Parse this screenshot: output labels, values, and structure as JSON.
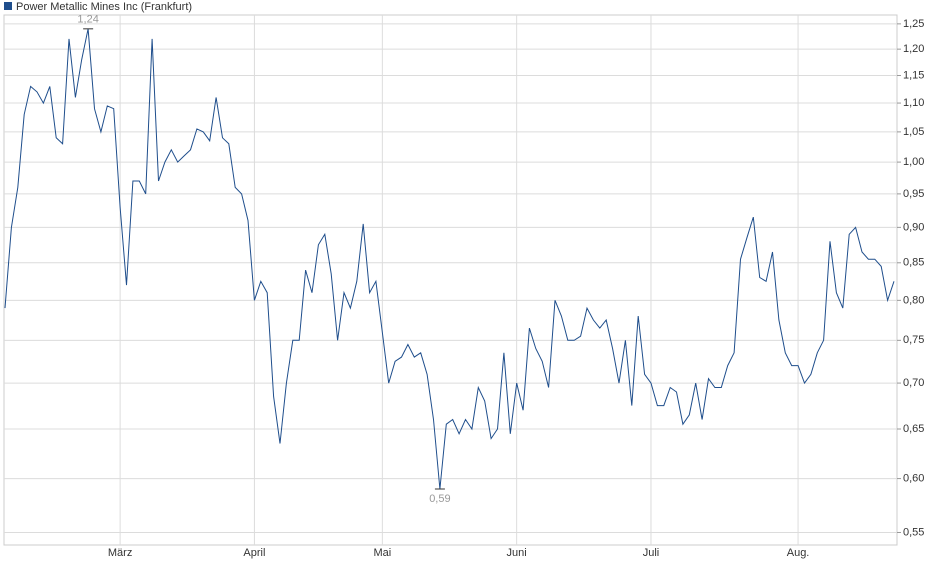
{
  "chart_data": {
    "type": "line",
    "legend_position": "top-left",
    "log_scale": true,
    "grid": true,
    "categories": [
      null,
      null,
      null,
      null,
      null,
      null,
      null,
      null,
      null,
      null,
      null,
      null,
      null,
      null,
      null,
      null,
      null,
      null,
      "März",
      null,
      null,
      null,
      null,
      null,
      null,
      null,
      null,
      null,
      null,
      null,
      null,
      null,
      null,
      null,
      null,
      null,
      null,
      null,
      null,
      "April",
      null,
      null,
      null,
      null,
      null,
      null,
      null,
      null,
      null,
      null,
      null,
      null,
      null,
      null,
      null,
      null,
      null,
      null,
      null,
      "Mai",
      null,
      null,
      null,
      null,
      null,
      null,
      null,
      null,
      null,
      null,
      null,
      null,
      null,
      null,
      null,
      null,
      null,
      null,
      null,
      null,
      "Juni",
      null,
      null,
      null,
      null,
      null,
      null,
      null,
      null,
      null,
      null,
      null,
      null,
      null,
      null,
      null,
      null,
      null,
      null,
      null,
      null,
      "Juli",
      null,
      null,
      null,
      null,
      null,
      null,
      null,
      null,
      null,
      null,
      null,
      null,
      null,
      null,
      null,
      null,
      null,
      null,
      null,
      null,
      null,
      null,
      "Aug.",
      null,
      null,
      null,
      null,
      null,
      null,
      null,
      null,
      null,
      null,
      null,
      null,
      null,
      null,
      null
    ],
    "series": [
      {
        "name": "Power Metallic Mines Inc (Frankfurt)",
        "color": "#1f4e8c",
        "values": [
          0.79,
          0.9,
          0.96,
          1.08,
          1.13,
          1.12,
          1.1,
          1.13,
          1.04,
          1.03,
          1.22,
          1.11,
          1.18,
          1.24,
          1.09,
          1.05,
          1.095,
          1.09,
          0.93,
          0.82,
          0.97,
          0.97,
          0.95,
          1.22,
          0.97,
          1.0,
          1.02,
          1.0,
          1.01,
          1.02,
          1.055,
          1.05,
          1.035,
          1.11,
          1.04,
          1.03,
          0.96,
          0.95,
          0.91,
          0.8,
          0.825,
          0.81,
          0.685,
          0.635,
          0.7,
          0.75,
          0.75,
          0.84,
          0.81,
          0.875,
          0.89,
          0.835,
          0.75,
          0.81,
          0.79,
          0.825,
          0.905,
          0.81,
          0.825,
          0.76,
          0.7,
          0.725,
          0.73,
          0.745,
          0.73,
          0.735,
          0.71,
          0.66,
          0.59,
          0.655,
          0.66,
          0.645,
          0.66,
          0.65,
          0.695,
          0.68,
          0.64,
          0.65,
          0.735,
          0.645,
          0.7,
          0.67,
          0.765,
          0.74,
          0.725,
          0.695,
          0.8,
          0.78,
          0.75,
          0.75,
          0.755,
          0.79,
          0.775,
          0.765,
          0.775,
          0.74,
          0.7,
          0.75,
          0.675,
          0.78,
          0.71,
          0.7,
          0.675,
          0.675,
          0.695,
          0.69,
          0.655,
          0.665,
          0.7,
          0.66,
          0.705,
          0.695,
          0.695,
          0.72,
          0.735,
          0.855,
          0.885,
          0.915,
          0.83,
          0.825,
          0.865,
          0.775,
          0.735,
          0.72,
          0.72,
          0.7,
          0.71,
          0.735,
          0.75,
          0.88,
          0.81,
          0.79,
          0.89,
          0.9,
          0.865,
          0.855,
          0.855,
          0.845,
          0.8,
          0.825
        ],
        "value_labels": [
          null,
          null,
          null,
          null,
          null,
          null,
          null,
          null,
          null,
          null,
          null,
          null,
          null,
          "1,24",
          null,
          null,
          null,
          null,
          null,
          null,
          null,
          null,
          null,
          null,
          null,
          null,
          null,
          null,
          null,
          null,
          null,
          null,
          null,
          null,
          null,
          null,
          null,
          null,
          null,
          null,
          null,
          null,
          null,
          null,
          null,
          null,
          null,
          null,
          null,
          null,
          null,
          null,
          null,
          null,
          null,
          null,
          null,
          null,
          null,
          null,
          null,
          null,
          null,
          null,
          null,
          null,
          null,
          null,
          "0,59",
          null,
          null,
          null,
          null,
          null,
          null,
          null,
          null,
          null,
          null,
          null,
          null,
          null,
          null,
          null,
          null,
          null,
          null,
          null,
          null,
          null,
          null,
          null,
          null,
          null,
          null,
          null,
          null,
          null,
          null,
          null,
          null,
          null,
          null,
          null,
          null,
          null,
          null,
          null,
          null,
          null,
          null,
          null,
          null,
          null,
          null,
          null,
          null,
          null,
          null,
          null,
          null,
          null,
          null,
          null,
          null,
          null,
          null,
          null,
          null,
          null,
          null,
          null,
          null,
          null,
          null,
          null,
          null,
          null,
          null,
          null
        ]
      }
    ],
    "ylim": [
      0.539,
      1.268
    ],
    "yticks": [
      {
        "value": 0.55,
        "label": "0,55"
      },
      {
        "value": 0.6,
        "label": "0,60"
      },
      {
        "value": 0.65,
        "label": "0,65"
      },
      {
        "value": 0.7,
        "label": "0,70"
      },
      {
        "value": 0.75,
        "label": "0,75"
      },
      {
        "value": 0.8,
        "label": "0,80"
      },
      {
        "value": 0.85,
        "label": "0,85"
      },
      {
        "value": 0.9,
        "label": "0,90"
      },
      {
        "value": 0.95,
        "label": "0,95"
      },
      {
        "value": 1.0,
        "label": "1,00"
      },
      {
        "value": 1.05,
        "label": "1,05"
      },
      {
        "value": 1.1,
        "label": "1,10"
      },
      {
        "value": 1.15,
        "label": "1,15"
      },
      {
        "value": 1.2,
        "label": "1,20"
      },
      {
        "value": 1.25,
        "label": "1,25"
      }
    ]
  }
}
